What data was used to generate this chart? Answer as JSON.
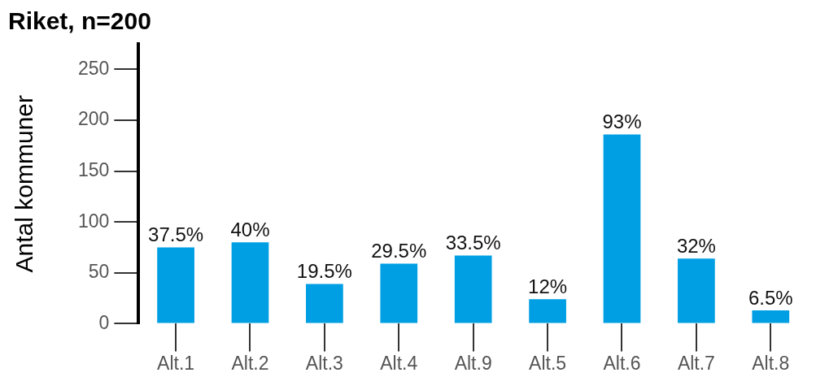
{
  "chart_data": {
    "type": "bar",
    "title": "Riket, n=200",
    "ylabel": "Antal kommuner",
    "categories": [
      "Alt.1",
      "Alt.2",
      "Alt.3",
      "Alt.4",
      "Alt.9",
      "Alt.5",
      "Alt.6",
      "Alt.7",
      "Alt.8"
    ],
    "values": [
      75,
      80,
      39,
      59,
      67,
      24,
      186,
      64,
      13
    ],
    "color": "#009fe3",
    "annotations": [
      {
        "text": "37.5%",
        "x": "Alt.1",
        "y": 75
      },
      {
        "text": "40%",
        "x": "Alt.2",
        "y": 80
      },
      {
        "text": "19.5%",
        "x": "Alt.3",
        "y": 39
      },
      {
        "text": "29.5%",
        "x": "Alt.4",
        "y": 59
      },
      {
        "text": "33.5%",
        "x": "Alt.9",
        "y": 67
      },
      {
        "text": "12%",
        "x": "Alt.5",
        "y": 24
      },
      {
        "text": "93%",
        "x": "Alt.6",
        "y": 186
      },
      {
        "text": "32%",
        "x": "Alt.7",
        "y": 64
      },
      {
        "text": "6.5%",
        "x": "Alt.8",
        "y": 13
      }
    ],
    "ylim": [
      0,
      275
    ],
    "yticks": [
      0,
      50,
      100,
      150,
      200,
      250
    ],
    "grid": false,
    "legend": false
  }
}
